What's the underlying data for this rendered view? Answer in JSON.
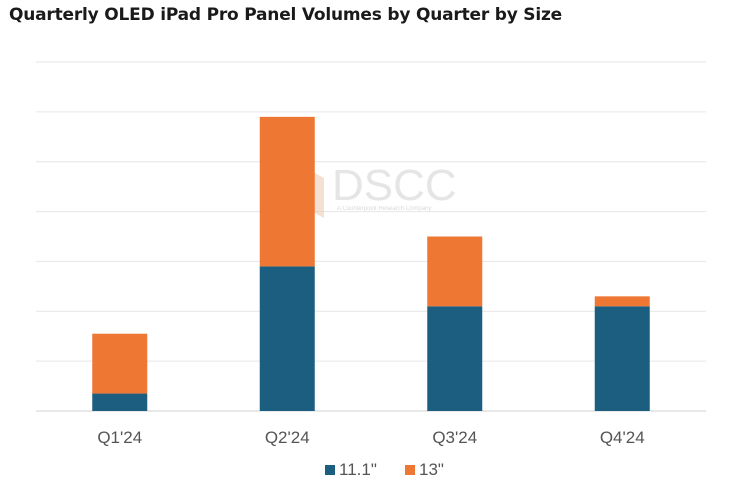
{
  "chart_data": {
    "type": "bar",
    "stacked": true,
    "title": "Quarterly OLED iPad Pro Panel Volumes by Quarter by Size",
    "categories": [
      "Q1'24",
      "Q2'24",
      "Q3'24",
      "Q4'24"
    ],
    "series": [
      {
        "name": "11.1\"",
        "color": "#1b5e80",
        "values": [
          0.35,
          2.9,
          2.1,
          2.1
        ]
      },
      {
        "name": "13\"",
        "color": "#ee7733",
        "values": [
          1.2,
          3.0,
          1.4,
          0.2
        ]
      }
    ],
    "ylim": [
      0,
      7
    ],
    "y_gridlines": 7,
    "y_tick_labels_shown": false,
    "grid": true,
    "legend": "bottom-center",
    "watermark": {
      "text": "DSCC",
      "subtext": "A Counterpoint Research Company"
    }
  }
}
